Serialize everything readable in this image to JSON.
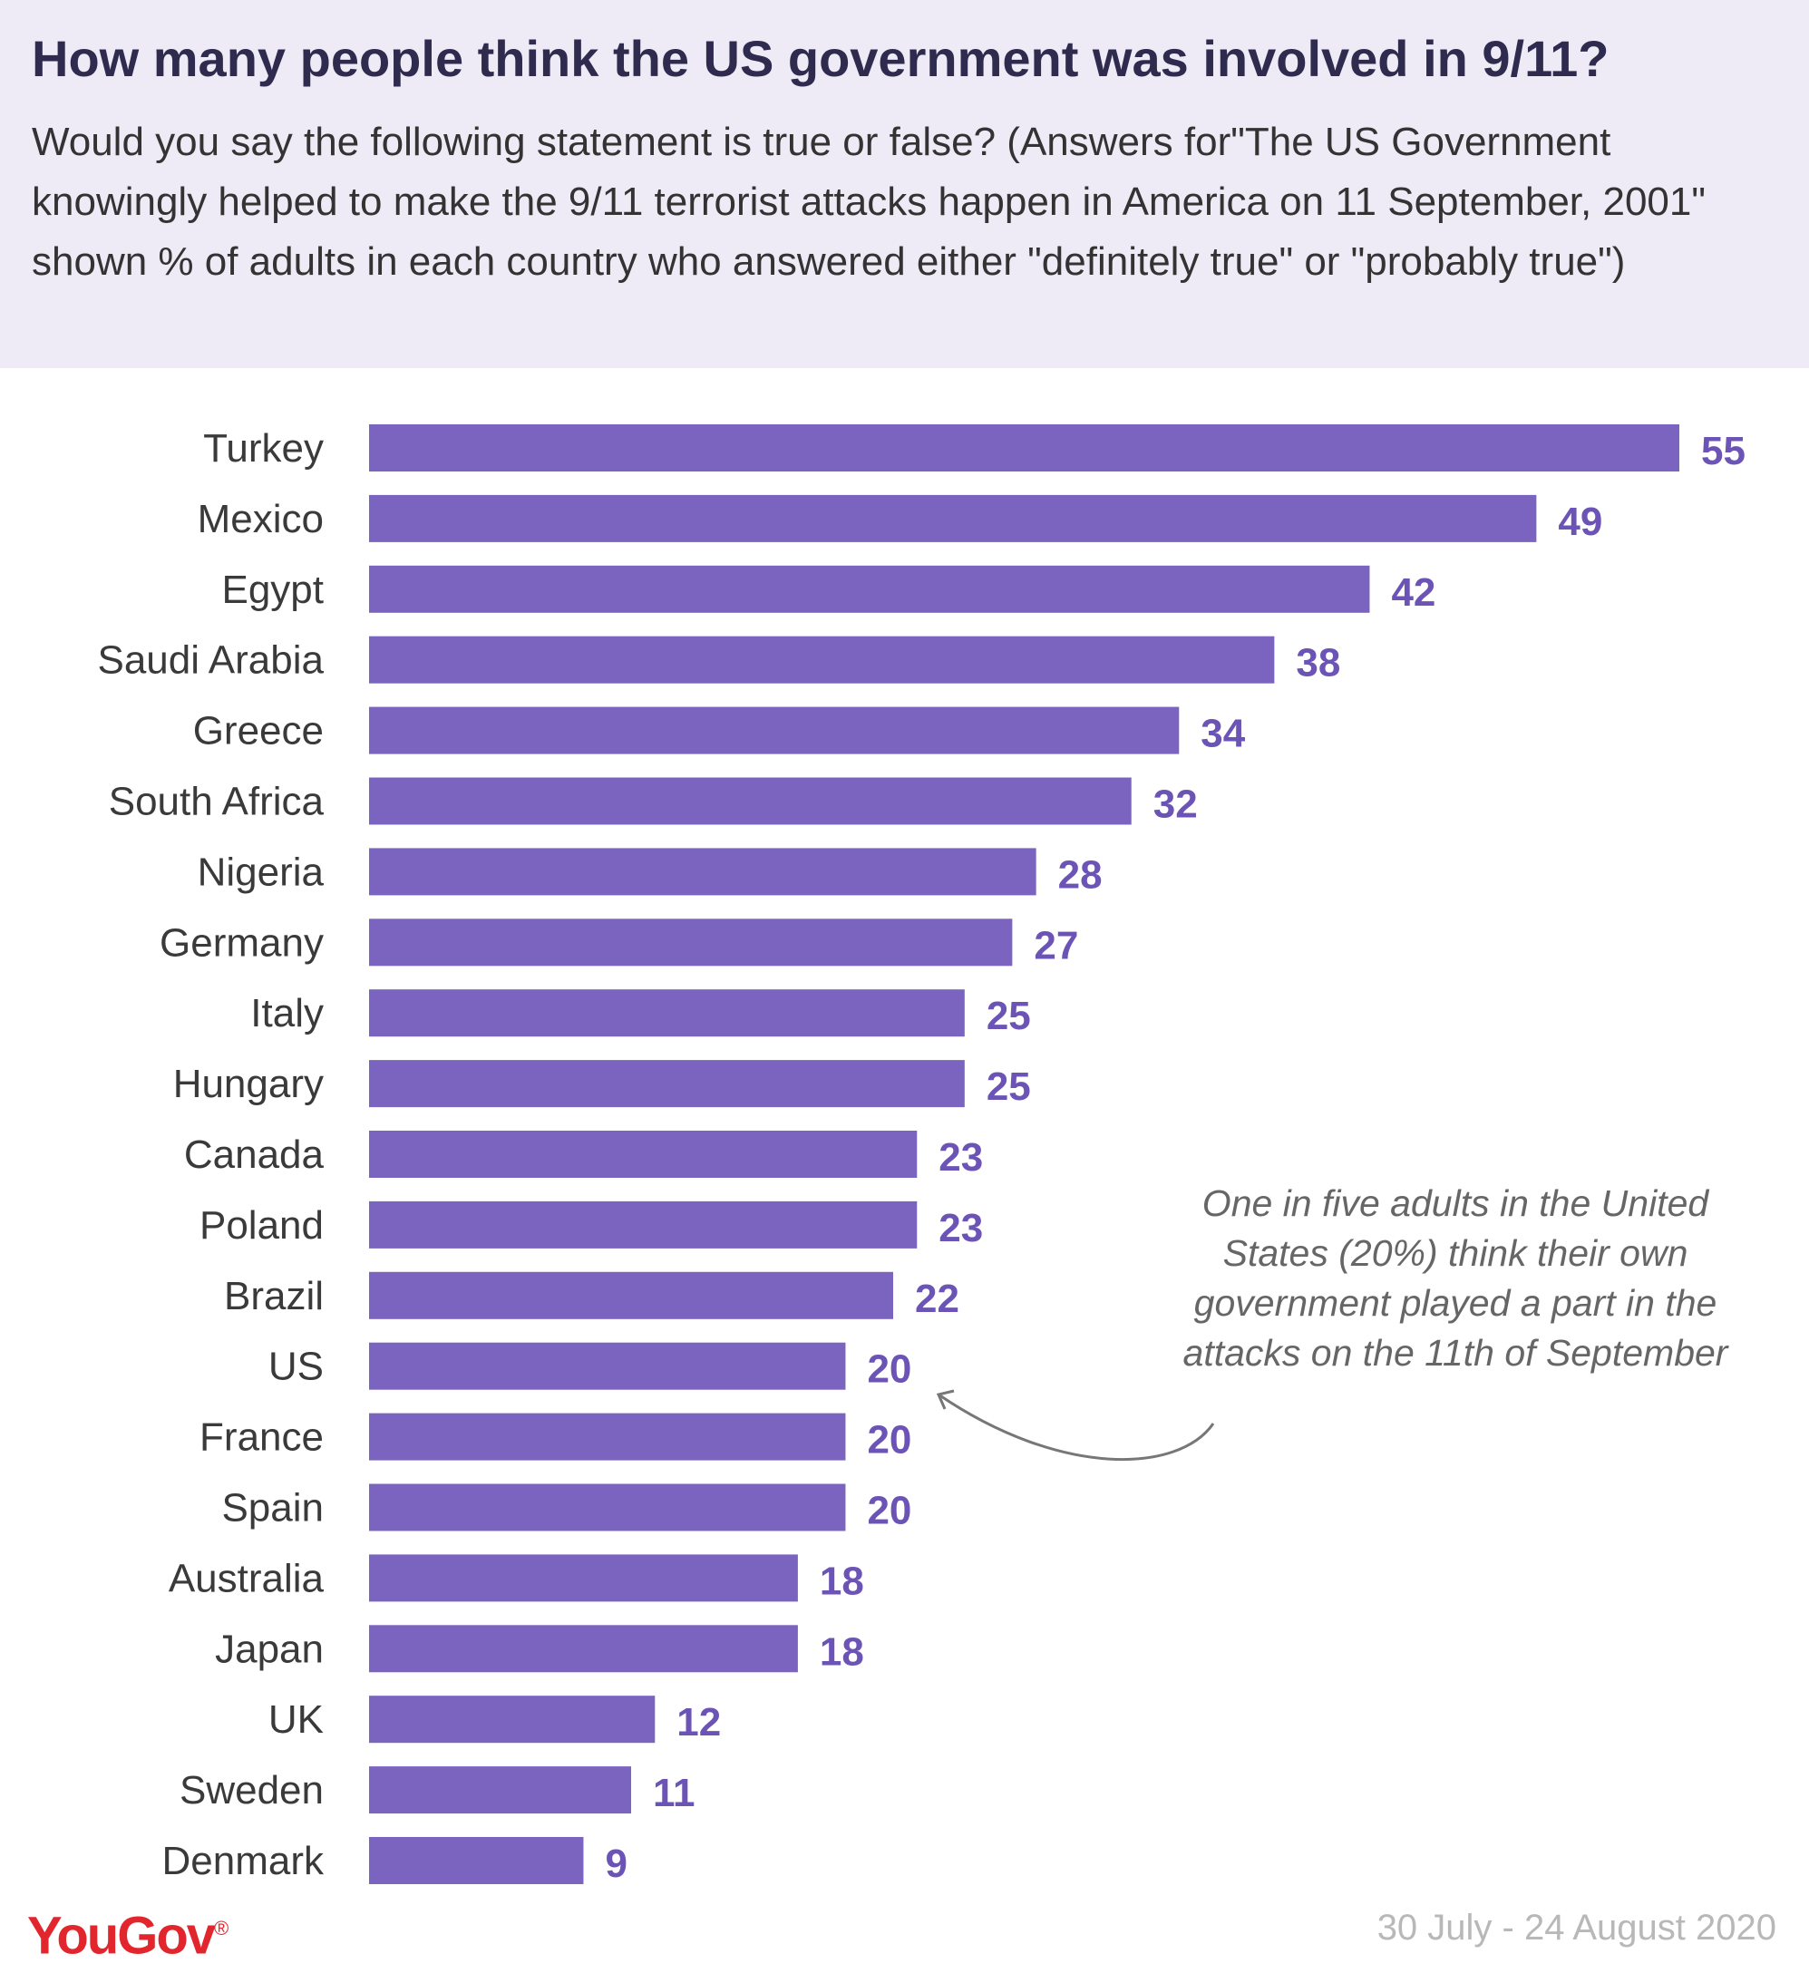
{
  "title": "How many people think the US government was involved in 9/11?",
  "subtitle": "Would you say the following statement is true or false? (Answers for\"The US Government knowingly helped to make the 9/11 terrorist attacks happen in America on 11 September, 2001\" shown % of adults in each country who answered either \"definitely true\" or \"probably true\")",
  "annotation": "One in five adults in the United States (20%) think their own government played a part in the attacks on the 11th of September",
  "logo_text": "YouGov",
  "date_range": "30 July - 24 August 2020",
  "colors": {
    "bar": "#7b64c0",
    "value_label": "#6b54b5",
    "header_bg": "#eeebf6",
    "logo": "#e2262d"
  },
  "chart_data": {
    "type": "bar",
    "orientation": "horizontal",
    "title": "How many people think the US government was involved in 9/11?",
    "categories": [
      "Turkey",
      "Mexico",
      "Egypt",
      "Saudi Arabia",
      "Greece",
      "South Africa",
      "Nigeria",
      "Germany",
      "Italy",
      "Hungary",
      "Canada",
      "Poland",
      "Brazil",
      "US",
      "France",
      "Spain",
      "Australia",
      "Japan",
      "UK",
      "Sweden",
      "Denmark"
    ],
    "values": [
      55,
      49,
      42,
      38,
      34,
      32,
      28,
      27,
      25,
      25,
      23,
      23,
      22,
      20,
      20,
      20,
      18,
      18,
      12,
      11,
      9
    ],
    "xlim": [
      0,
      55
    ],
    "grid": false,
    "legend": "none"
  }
}
